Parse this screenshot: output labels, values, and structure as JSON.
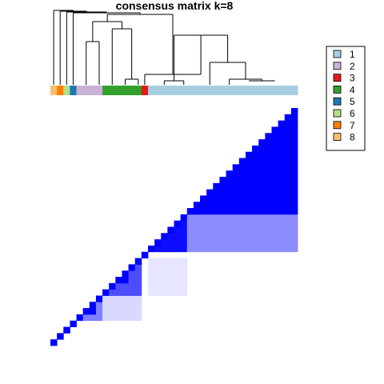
{
  "chart_data": {
    "type": "heatmap",
    "title": "consensus matrix k=8",
    "n_samples": 38,
    "cluster_colors": {
      "1": "#a6cee3",
      "2": "#cab2d6",
      "3": "#e31a1c",
      "4": "#33a02c",
      "5": "#1f78b4",
      "6": "#b2df8a",
      "7": "#ff7f00",
      "8": "#fdbf6f"
    },
    "sample_classes": [
      8,
      7,
      6,
      5,
      2,
      2,
      2,
      2,
      4,
      4,
      4,
      4,
      4,
      4,
      3,
      1,
      1,
      1,
      1,
      1,
      1,
      1,
      1,
      1,
      1,
      1,
      1,
      1,
      1,
      1,
      1,
      1,
      1,
      1,
      1,
      1,
      1,
      1
    ],
    "color_scale": {
      "low": "#ffffff",
      "high": "#0000ff",
      "min": 0,
      "max": 1
    },
    "blocks": [
      {
        "rows": [
          15,
          20
        ],
        "cols": [
          15,
          20
        ],
        "value": 0.95
      },
      {
        "rows": [
          21,
          37
        ],
        "cols": [
          21,
          37
        ],
        "value": 1.0
      },
      {
        "rows": [
          15,
          20
        ],
        "cols": [
          21,
          37
        ],
        "value": 0.45
      },
      {
        "rows": [
          21,
          37
        ],
        "cols": [
          15,
          20
        ],
        "value": 0.45
      },
      {
        "rows": [
          8,
          13
        ],
        "cols": [
          8,
          13
        ],
        "value": 0.7
      },
      {
        "rows": [
          10,
          11
        ],
        "cols": [
          10,
          11
        ],
        "value": 1.0
      },
      {
        "rows": [
          4,
          7
        ],
        "cols": [
          4,
          7
        ],
        "value": 0.5
      },
      {
        "rows": [
          5,
          6
        ],
        "cols": [
          5,
          6
        ],
        "value": 1.0
      },
      {
        "rows": [
          4,
          7
        ],
        "cols": [
          8,
          13
        ],
        "value": 0.15
      },
      {
        "rows": [
          8,
          13
        ],
        "cols": [
          4,
          7
        ],
        "value": 0.15
      },
      {
        "rows": [
          8,
          13
        ],
        "cols": [
          15,
          20
        ],
        "value": 0.1
      },
      {
        "rows": [
          15,
          20
        ],
        "cols": [
          8,
          13
        ],
        "value": 0.1
      }
    ],
    "diagonal_value": 1.0,
    "legend": {
      "placement": "right",
      "labels": [
        "1",
        "2",
        "3",
        "4",
        "5",
        "6",
        "7",
        "8"
      ]
    }
  }
}
